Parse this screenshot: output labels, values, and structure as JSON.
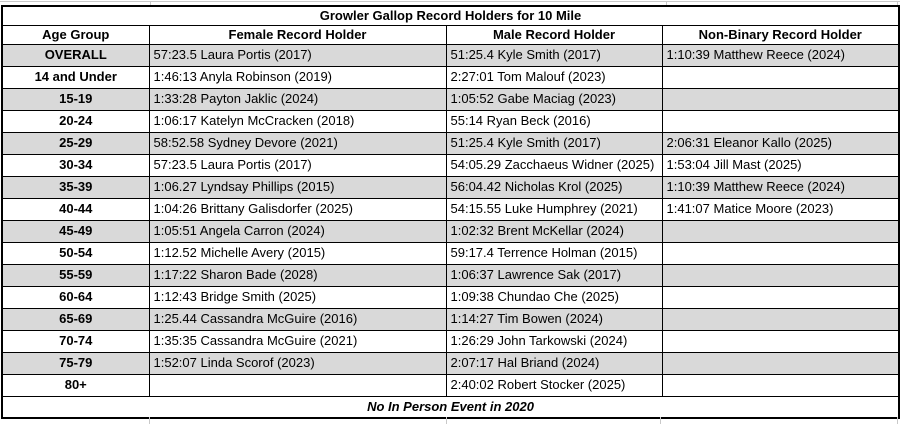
{
  "table": {
    "title": "Growler Gallop Record Holders for 10 Mile",
    "headers": [
      "Age Group",
      "Female Record Holder",
      "Male Record Holder",
      "Non-Binary Record Holder"
    ],
    "rows": [
      {
        "age_group": "OVERALL",
        "female": "57:23.5 Laura Portis (2017)",
        "male": "51:25.4 Kyle Smith (2017)",
        "non_binary": "1:10:39 Matthew Reece (2024)"
      },
      {
        "age_group": "14 and Under",
        "female": "1:46:13 Anyla Robinson (2019)",
        "male": "2:27:01 Tom Malouf (2023)",
        "non_binary": ""
      },
      {
        "age_group": "15-19",
        "female": "1:33:28 Payton Jaklic (2024)",
        "male": "1:05:52 Gabe Maciag (2023)",
        "non_binary": ""
      },
      {
        "age_group": "20-24",
        "female": "1:06:17 Katelyn McCracken (2018)",
        "male": "55:14 Ryan Beck (2016)",
        "non_binary": ""
      },
      {
        "age_group": "25-29",
        "female": "58:52.58 Sydney Devore (2021)",
        "male": "51:25.4 Kyle Smith (2017)",
        "non_binary": "2:06:31 Eleanor Kallo (2025)"
      },
      {
        "age_group": "30-34",
        "female": "57:23.5 Laura Portis (2017)",
        "male": "54:05.29 Zacchaeus Widner (2025)",
        "non_binary": "1:53:04 Jill Mast (2025)"
      },
      {
        "age_group": "35-39",
        "female": "1:06.27 Lyndsay Phillips (2015)",
        "male": "56:04.42 Nicholas Krol (2025)",
        "non_binary": "1:10:39 Matthew Reece (2024)"
      },
      {
        "age_group": "40-44",
        "female": "1:04:26 Brittany Galisdorfer (2025)",
        "male": "54:15.55 Luke Humphrey (2021)",
        "non_binary": "1:41:07 Matice Moore (2023)"
      },
      {
        "age_group": "45-49",
        "female": "1:05:51 Angela Carron (2024)",
        "male": "1:02:32 Brent McKellar (2024)",
        "non_binary": ""
      },
      {
        "age_group": "50-54",
        "female": "1:12.52 Michelle Avery (2015)",
        "male": "59:17.4 Terrence Holman (2015)",
        "non_binary": ""
      },
      {
        "age_group": "55-59",
        "female": "1:17:22 Sharon Bade (2028)",
        "male": "1:06:37 Lawrence Sak (2017)",
        "non_binary": ""
      },
      {
        "age_group": "60-64",
        "female": "1:12:43 Bridge Smith (2025)",
        "male": "1:09:38 Chundao Che (2025)",
        "non_binary": ""
      },
      {
        "age_group": "65-69",
        "female": "1:25.44 Cassandra McGuire  (2016)",
        "male": "1:14:27 Tim Bowen (2024)",
        "non_binary": ""
      },
      {
        "age_group": "70-74",
        "female": "1:35:35 Cassandra McGuire (2021)",
        "male": "1:26:29 John Tarkowski (2024)",
        "non_binary": ""
      },
      {
        "age_group": "75-79",
        "female": "1:52:07 Linda Scorof (2023)",
        "male": "2:07:17 Hal Briand (2024)",
        "non_binary": ""
      },
      {
        "age_group": "80+",
        "female": "",
        "male": "2:40:02 Robert Stocker (2025)",
        "non_binary": ""
      }
    ],
    "footer_note": "No In Person Event in 2020"
  },
  "colors": {
    "shaded_row": "#d9d9d9",
    "table_border": "#000000",
    "sheet_gridline": "#c9c9c9"
  }
}
